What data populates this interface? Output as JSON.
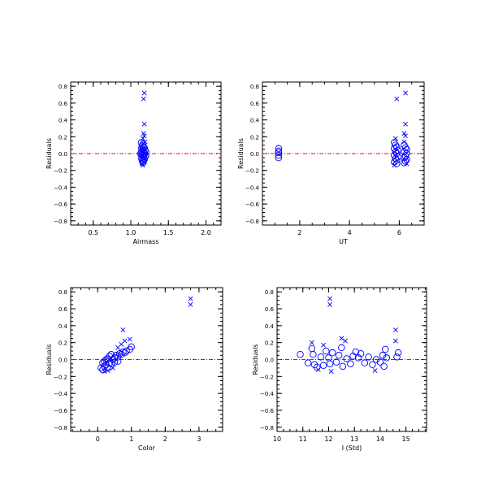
{
  "chart_data": [
    {
      "type": "scatter",
      "xlabel": "Airmass",
      "ylabel": "Residuals",
      "xlim": [
        0.2,
        2.2
      ],
      "ylim": [
        -0.85,
        0.85
      ],
      "xticks": [
        0.5,
        1.0,
        1.5,
        2.0
      ],
      "xticklabels": [
        "0.5",
        "1.0",
        "1.5",
        "2.0"
      ],
      "yticks": [
        -0.8,
        -0.6,
        -0.4,
        -0.2,
        0.0,
        0.2,
        0.4,
        0.6,
        0.8
      ],
      "yticklabels": [
        "−0.8",
        "−0.6",
        "−0.4",
        "−0.2",
        "0.0",
        "0.2",
        "0.4",
        "0.6",
        "0.8"
      ],
      "xminor": 0.1,
      "yminor": 0.05,
      "reference_line": 0.0,
      "circles": [
        [
          1.14,
          0.13
        ],
        [
          1.16,
          0.11
        ],
        [
          1.15,
          0.09
        ],
        [
          1.17,
          0.08
        ],
        [
          1.18,
          0.07
        ],
        [
          1.14,
          0.06
        ],
        [
          1.16,
          0.05
        ],
        [
          1.19,
          0.04
        ],
        [
          1.15,
          0.03
        ],
        [
          1.17,
          0.02
        ],
        [
          1.14,
          0.01
        ],
        [
          1.18,
          0.0
        ],
        [
          1.16,
          -0.01
        ],
        [
          1.15,
          -0.02
        ],
        [
          1.17,
          -0.03
        ],
        [
          1.19,
          -0.04
        ],
        [
          1.14,
          -0.05
        ],
        [
          1.16,
          -0.06
        ],
        [
          1.18,
          -0.07
        ],
        [
          1.15,
          -0.08
        ],
        [
          1.17,
          -0.09
        ],
        [
          1.16,
          -0.11
        ],
        [
          1.2,
          0.02
        ],
        [
          1.2,
          -0.02
        ],
        [
          1.13,
          0.0
        ]
      ],
      "crosses": [
        [
          1.18,
          0.72
        ],
        [
          1.17,
          0.65
        ],
        [
          1.18,
          0.35
        ],
        [
          1.17,
          0.24
        ],
        [
          1.18,
          0.21
        ],
        [
          1.16,
          0.18
        ],
        [
          1.19,
          0.14
        ],
        [
          1.15,
          -0.12
        ],
        [
          1.16,
          -0.14
        ],
        [
          1.18,
          -0.1
        ],
        [
          1.17,
          0.12
        ]
      ]
    },
    {
      "type": "scatter",
      "xlabel": "UT",
      "ylabel": "Residuals",
      "xlim": [
        0.5,
        7.0
      ],
      "ylim": [
        -0.85,
        0.85
      ],
      "xticks": [
        2,
        4,
        6
      ],
      "xticklabels": [
        "2",
        "4",
        "6"
      ],
      "yticks": [
        -0.8,
        -0.6,
        -0.4,
        -0.2,
        0.0,
        0.2,
        0.4,
        0.6,
        0.8
      ],
      "yticklabels": [
        "−0.8",
        "−0.6",
        "−0.4",
        "−0.2",
        "0.0",
        "0.2",
        "0.4",
        "0.6",
        "0.8"
      ],
      "xminor": 0.5,
      "yminor": 0.05,
      "reference_line": 0.0,
      "circles": [
        [
          1.15,
          0.06
        ],
        [
          1.15,
          0.03
        ],
        [
          1.15,
          0.01
        ],
        [
          1.15,
          -0.02
        ],
        [
          1.15,
          -0.05
        ],
        [
          5.8,
          0.13
        ],
        [
          5.85,
          0.1
        ],
        [
          5.9,
          0.08
        ],
        [
          5.8,
          0.06
        ],
        [
          5.95,
          0.04
        ],
        [
          5.85,
          0.02
        ],
        [
          5.9,
          0.0
        ],
        [
          5.8,
          -0.02
        ],
        [
          5.95,
          -0.04
        ],
        [
          5.85,
          -0.06
        ],
        [
          5.9,
          -0.08
        ],
        [
          5.8,
          -0.1
        ],
        [
          5.9,
          -0.12
        ],
        [
          6.2,
          0.1
        ],
        [
          6.25,
          0.07
        ],
        [
          6.3,
          0.05
        ],
        [
          6.2,
          0.02
        ],
        [
          6.3,
          0.0
        ],
        [
          6.25,
          -0.03
        ],
        [
          6.2,
          -0.05
        ],
        [
          6.3,
          -0.07
        ],
        [
          6.25,
          -0.09
        ],
        [
          6.2,
          -0.11
        ]
      ],
      "crosses": [
        [
          6.25,
          0.72
        ],
        [
          5.9,
          0.65
        ],
        [
          6.25,
          0.35
        ],
        [
          6.2,
          0.24
        ],
        [
          6.25,
          0.21
        ],
        [
          5.85,
          0.18
        ],
        [
          6.2,
          0.14
        ],
        [
          5.8,
          -0.14
        ],
        [
          6.3,
          -0.12
        ]
      ]
    },
    {
      "type": "scatter",
      "xlabel": "Color",
      "ylabel": "Residuals",
      "xlim": [
        -0.8,
        3.7
      ],
      "ylim": [
        -0.85,
        0.85
      ],
      "xticks": [
        0,
        1,
        2,
        3
      ],
      "xticklabels": [
        "0",
        "1",
        "2",
        "3"
      ],
      "yticks": [
        -0.8,
        -0.6,
        -0.4,
        -0.2,
        0.0,
        0.2,
        0.4,
        0.6,
        0.8
      ],
      "yticklabels": [
        "−0.8",
        "−0.6",
        "−0.4",
        "−0.2",
        "0.0",
        "0.2",
        "0.4",
        "0.6",
        "0.8"
      ],
      "xminor": 0.25,
      "yminor": 0.05,
      "reference_line": 0.0,
      "circles": [
        [
          0.1,
          -0.1
        ],
        [
          0.15,
          -0.12
        ],
        [
          0.2,
          -0.08
        ],
        [
          0.25,
          -0.06
        ],
        [
          0.3,
          -0.1
        ],
        [
          0.35,
          -0.04
        ],
        [
          0.2,
          -0.02
        ],
        [
          0.3,
          0.01
        ],
        [
          0.4,
          -0.05
        ],
        [
          0.45,
          0.0
        ],
        [
          0.5,
          0.02
        ],
        [
          0.35,
          0.04
        ],
        [
          0.55,
          0.05
        ],
        [
          0.6,
          0.03
        ],
        [
          0.65,
          0.07
        ],
        [
          0.7,
          0.06
        ],
        [
          0.75,
          0.09
        ],
        [
          0.8,
          0.08
        ],
        [
          0.85,
          0.1
        ],
        [
          0.95,
          0.12
        ],
        [
          1.0,
          0.15
        ],
        [
          0.5,
          -0.03
        ],
        [
          0.4,
          0.06
        ],
        [
          0.25,
          0.0
        ],
        [
          0.6,
          -0.02
        ],
        [
          0.15,
          -0.04
        ]
      ],
      "crosses": [
        [
          2.75,
          0.72
        ],
        [
          2.75,
          0.65
        ],
        [
          0.75,
          0.35
        ],
        [
          0.8,
          0.22
        ],
        [
          0.95,
          0.24
        ],
        [
          0.7,
          0.18
        ],
        [
          0.2,
          -0.14
        ],
        [
          0.3,
          -0.13
        ],
        [
          0.45,
          -0.1
        ],
        [
          0.6,
          0.14
        ]
      ]
    },
    {
      "type": "scatter",
      "xlabel": "I (Std)",
      "ylabel": "Residuals",
      "xlim": [
        10.0,
        15.8
      ],
      "ylim": [
        -0.85,
        0.85
      ],
      "xticks": [
        10,
        11,
        12,
        13,
        14,
        15
      ],
      "xticklabels": [
        "10",
        "11",
        "12",
        "13",
        "14",
        "15"
      ],
      "yticks": [
        -0.8,
        -0.6,
        -0.4,
        -0.2,
        0.0,
        0.2,
        0.4,
        0.6,
        0.8
      ],
      "yticklabels": [
        "−0.8",
        "−0.6",
        "−0.4",
        "−0.2",
        "0.0",
        "0.2",
        "0.4",
        "0.6",
        "0.8"
      ],
      "xminor": 0.25,
      "yminor": 0.05,
      "reference_line": 0.0,
      "circles": [
        [
          10.9,
          0.06
        ],
        [
          11.2,
          -0.04
        ],
        [
          11.35,
          0.13
        ],
        [
          11.4,
          0.06
        ],
        [
          11.45,
          -0.06
        ],
        [
          11.55,
          -0.09
        ],
        [
          11.7,
          0.03
        ],
        [
          11.8,
          -0.07
        ],
        [
          11.9,
          0.1
        ],
        [
          12.0,
          0.02
        ],
        [
          12.05,
          -0.05
        ],
        [
          12.15,
          0.08
        ],
        [
          12.3,
          -0.03
        ],
        [
          12.4,
          0.05
        ],
        [
          12.5,
          0.14
        ],
        [
          12.55,
          -0.08
        ],
        [
          12.7,
          0.01
        ],
        [
          12.85,
          -0.05
        ],
        [
          12.95,
          0.04
        ],
        [
          13.05,
          0.09
        ],
        [
          13.15,
          0.02
        ],
        [
          13.25,
          0.07
        ],
        [
          13.4,
          -0.04
        ],
        [
          13.55,
          0.03
        ],
        [
          13.7,
          -0.06
        ],
        [
          13.85,
          0.0
        ],
        [
          14.0,
          -0.03
        ],
        [
          14.1,
          0.05
        ],
        [
          14.15,
          -0.08
        ],
        [
          14.2,
          0.12
        ],
        [
          14.25,
          0.02
        ],
        [
          14.65,
          0.03
        ],
        [
          14.7,
          0.08
        ]
      ],
      "crosses": [
        [
          12.05,
          0.72
        ],
        [
          12.05,
          0.65
        ],
        [
          14.6,
          0.35
        ],
        [
          14.6,
          0.22
        ],
        [
          12.5,
          0.25
        ],
        [
          12.65,
          0.22
        ],
        [
          11.35,
          0.2
        ],
        [
          11.8,
          0.17
        ],
        [
          12.1,
          -0.14
        ],
        [
          13.8,
          -0.13
        ],
        [
          11.6,
          -0.12
        ]
      ]
    }
  ],
  "colors": {
    "markers": "#0000ff",
    "reference_line": "#ff0000",
    "axes": "#000000",
    "background": "#ffffff"
  }
}
